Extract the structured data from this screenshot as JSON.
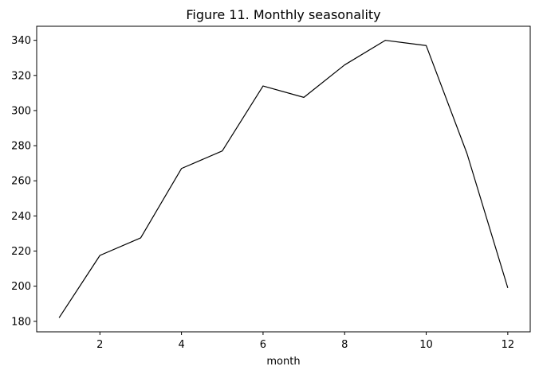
{
  "chart_data": {
    "type": "line",
    "title": "Figure 11. Monthly seasonality",
    "xlabel": "month",
    "ylabel": "",
    "x": [
      1,
      2,
      3,
      4,
      5,
      6,
      7,
      8,
      9,
      10,
      11,
      12
    ],
    "series": [
      {
        "values": [
          182,
          217.5,
          227.5,
          267,
          277,
          314,
          307.5,
          326,
          340,
          337,
          275.5,
          199
        ]
      }
    ],
    "xlim": [
      0.45,
      12.55
    ],
    "ylim": [
      174,
      348
    ],
    "xticks": [
      2,
      4,
      6,
      8,
      10,
      12
    ],
    "yticks": [
      180,
      200,
      220,
      240,
      260,
      280,
      300,
      320,
      340
    ],
    "grid": false,
    "line_color": "#000000"
  }
}
